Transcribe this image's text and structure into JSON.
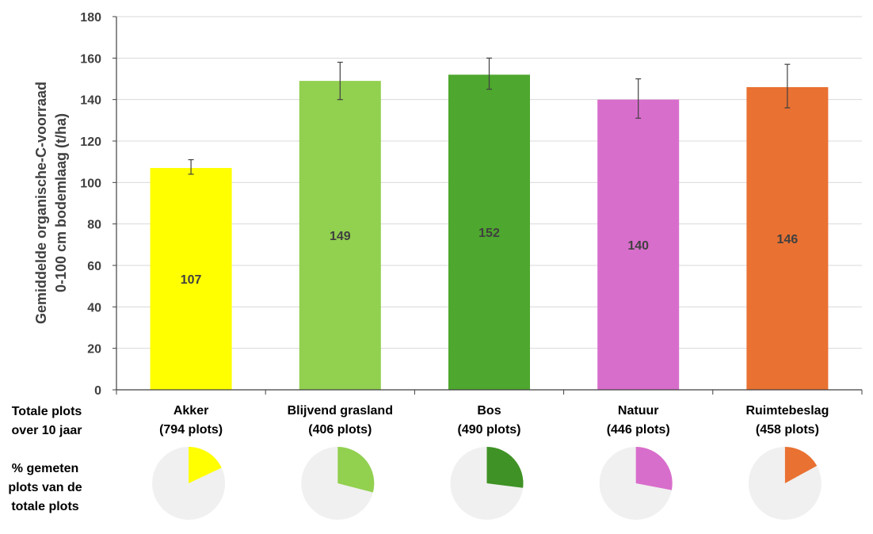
{
  "chart_data": {
    "type": "bar",
    "ylabel_lines": [
      "Gemiddelde organische-C-voorraad",
      "0-100 cm bodemlaag (t/ha)"
    ],
    "ylim": [
      0,
      180
    ],
    "yticks": [
      0,
      20,
      40,
      60,
      80,
      100,
      120,
      140,
      160,
      180
    ],
    "grid": true,
    "categories": [
      "Akker",
      "Blijvend grasland",
      "Bos",
      "Natuur",
      "Ruimtebeslag"
    ],
    "plot_counts": [
      "(794 plots)",
      "(406 plots)",
      "(490 plots)",
      "(446 plots)",
      "(458 plots)"
    ],
    "values": [
      107,
      149,
      152,
      140,
      146
    ],
    "value_labels": [
      "107",
      "149",
      "152",
      "140",
      "146"
    ],
    "error_low": [
      104,
      140,
      145,
      131,
      136
    ],
    "error_high": [
      111,
      158,
      160,
      150,
      157
    ],
    "colors": [
      "#ffff00",
      "#92d050",
      "#4ea72e",
      "#d86ecc",
      "#e97132"
    ],
    "measured_fraction": [
      0.18,
      0.29,
      0.27,
      0.28,
      0.17
    ],
    "pie_colors": [
      "#ffff00",
      "#92d050",
      "#3f9225",
      "#d86ecc",
      "#e97132"
    ],
    "pie_background": "#f0f0f0",
    "row_label_totals": [
      "Totale plots",
      "over 10 jaar"
    ],
    "row_label_percent": [
      "% gemeten",
      "plots van de",
      "totale plots"
    ]
  }
}
